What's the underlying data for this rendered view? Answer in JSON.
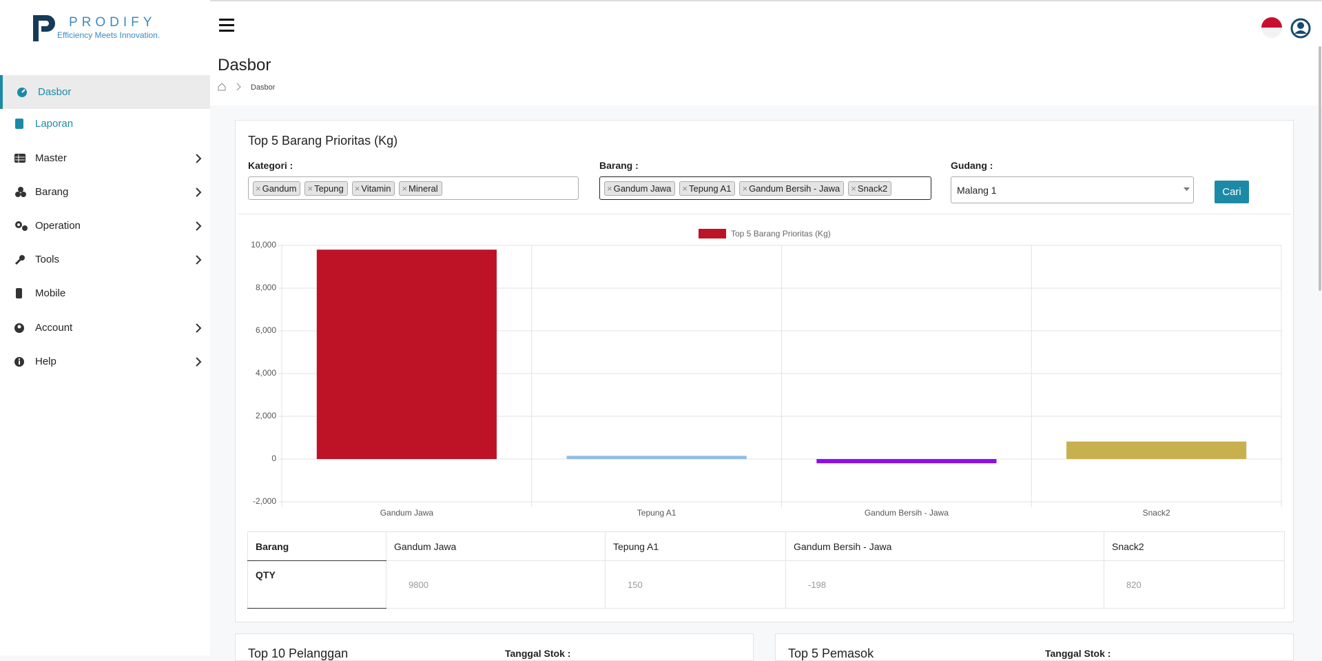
{
  "header": {
    "logo_title": "PRODIFY",
    "logo_tagline": "Efficiency Meets Innovation."
  },
  "sidebar": {
    "items": [
      "Dasbor",
      "Laporan",
      "Master",
      "Barang",
      "Operation",
      "Tools",
      "Mobile",
      "Account",
      "Help"
    ]
  },
  "page": {
    "title": "Dasbor",
    "breadcrumb": "Dasbor"
  },
  "card": {
    "title": "Top 5 Barang Prioritas (Kg)",
    "filters": {
      "kategori_label": "Kategori :",
      "kategori_tags": [
        "Gandum",
        "Tepung",
        "Vitamin",
        "Mineral"
      ],
      "barang_label": "Barang :",
      "barang_tags": [
        "Gandum Jawa",
        "Tepung A1",
        "Gandum Bersih - Jawa",
        "Snack2"
      ],
      "gudang_label": "Gudang :",
      "gudang_value": "Malang 1",
      "button": "Cari"
    },
    "table": {
      "header": "Barang",
      "row_label": "QTY"
    }
  },
  "chart_data": {
    "type": "bar",
    "categories": [
      "Gandum Jawa",
      "Tepung A1",
      "Gandum Bersih - Jawa",
      "Snack2"
    ],
    "series": [
      {
        "name": "Top 5 Barang Prioritas (Kg)",
        "color": "#be1227",
        "colors": [
          "#be1227",
          "#8fbce6",
          "#8b10e8",
          "#c9b04f"
        ],
        "values": [
          9800,
          150,
          -198,
          820
        ]
      }
    ],
    "ylim": [
      -2000,
      10000
    ],
    "yticks": [
      {
        "value": 10000,
        "label": "10,000"
      },
      {
        "value": 8000,
        "label": "8,000"
      },
      {
        "value": 6000,
        "label": "6,000"
      },
      {
        "value": 4000,
        "label": "4,000"
      },
      {
        "value": 2000,
        "label": "2,000"
      },
      0,
      {
        "value": -2000,
        "label": "-2,000"
      }
    ],
    "grid": true,
    "legend": "top"
  },
  "bottom": {
    "cards": [
      {
        "title": "Top 10 Pelanggan",
        "date_label": "Tanggal Stok :"
      },
      {
        "title": "Top 5 Pemasok",
        "date_label": "Tanggal Stok :"
      }
    ]
  }
}
